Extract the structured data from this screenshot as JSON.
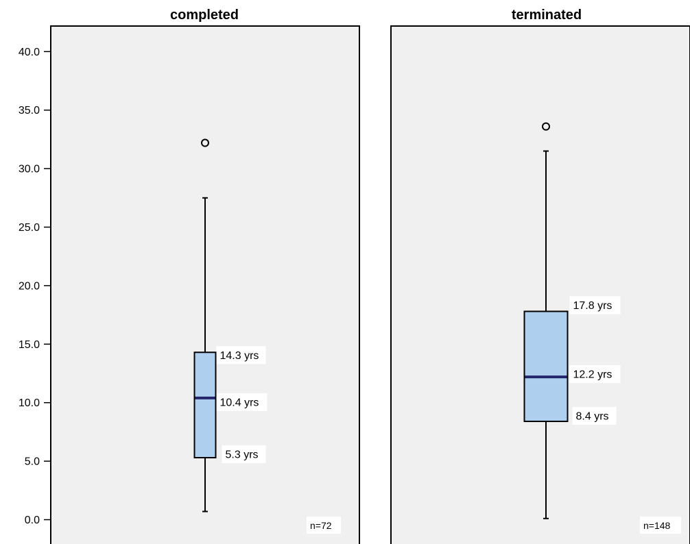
{
  "chart_data": {
    "type": "boxplot",
    "ylim": [
      0,
      40
    ],
    "yticks": [
      0,
      5,
      10,
      15,
      20,
      25,
      30,
      35,
      40
    ],
    "ytick_labels": [
      "0.0",
      "5.0",
      "10.0",
      "15.0",
      "20.0",
      "25.0",
      "30.0",
      "35.0",
      "40.0"
    ],
    "panel_color": "#f0f0f0",
    "box_color": "#aed0ee",
    "median_color": "#24256b",
    "grid": false,
    "panels": [
      {
        "title": "completed",
        "n_label": "n=72",
        "whisker_low": 0.7,
        "q1": 5.3,
        "median": 10.4,
        "q3": 14.3,
        "whisker_high": 27.5,
        "outliers": [
          32.2
        ],
        "q1_label": "5.3 yrs",
        "median_label": "10.4 yrs",
        "q3_label": "14.3 yrs"
      },
      {
        "title": "terminated",
        "n_label": "n=148",
        "whisker_low": 0.1,
        "q1": 8.4,
        "median": 12.2,
        "q3": 17.8,
        "whisker_high": 31.5,
        "outliers": [
          33.6
        ],
        "q1_label": "8.4 yrs",
        "median_label": "12.2 yrs",
        "q3_label": "17.8 yrs"
      }
    ]
  }
}
